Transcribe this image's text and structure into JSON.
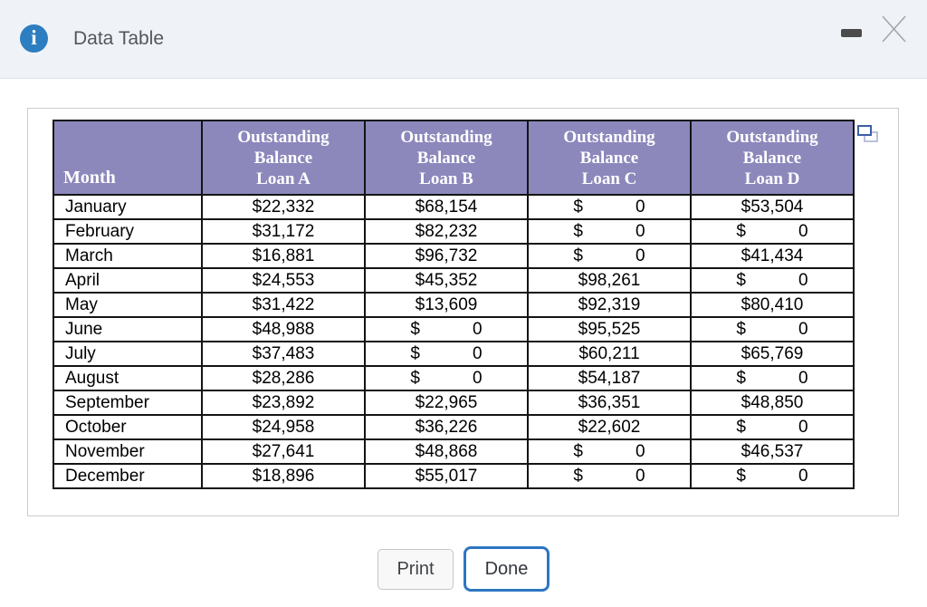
{
  "window": {
    "title": "Data Table",
    "info_glyph": "i"
  },
  "icons": {
    "info": "info-icon",
    "minimize": "minimize-icon",
    "close": "close-icon",
    "popout": "pop-out-icon"
  },
  "colors": {
    "titlebar_bg": "#eff3f7",
    "info_blue": "#2d7ec0",
    "header_purple": "#8c88bc",
    "table_border": "#141414",
    "accent_blue": "#2e75c2",
    "panel_border": "#c9cdd2"
  },
  "table": {
    "header": {
      "month": "Month",
      "loans": [
        "Outstanding\nBalance\nLoan A",
        "Outstanding\nBalance\nLoan B",
        "Outstanding\nBalance\nLoan C",
        "Outstanding\nBalance\nLoan D"
      ]
    },
    "rows": [
      {
        "month": "January",
        "a": "$22,332",
        "b": "$68,154",
        "c": "$           0",
        "d": "$53,504"
      },
      {
        "month": "February",
        "a": "$31,172",
        "b": "$82,232",
        "c": "$           0",
        "d": "$           0"
      },
      {
        "month": "March",
        "a": "$16,881",
        "b": "$96,732",
        "c": "$           0",
        "d": "$41,434"
      },
      {
        "month": "April",
        "a": "$24,553",
        "b": "$45,352",
        "c": "$98,261",
        "d": "$           0"
      },
      {
        "month": "May",
        "a": "$31,422",
        "b": "$13,609",
        "c": "$92,319",
        "d": "$80,410"
      },
      {
        "month": "June",
        "a": "$48,988",
        "b": "$           0",
        "c": "$95,525",
        "d": "$           0"
      },
      {
        "month": "July",
        "a": "$37,483",
        "b": "$           0",
        "c": "$60,211",
        "d": "$65,769"
      },
      {
        "month": "August",
        "a": "$28,286",
        "b": "$           0",
        "c": "$54,187",
        "d": "$           0"
      },
      {
        "month": "September",
        "a": "$23,892",
        "b": "$22,965",
        "c": "$36,351",
        "d": "$48,850"
      },
      {
        "month": "October",
        "a": "$24,958",
        "b": "$36,226",
        "c": "$22,602",
        "d": "$           0"
      },
      {
        "month": "November",
        "a": "$27,641",
        "b": "$48,868",
        "c": "$           0",
        "d": "$46,537"
      },
      {
        "month": "December",
        "a": "$18,896",
        "b": "$55,017",
        "c": "$           0",
        "d": "$           0"
      }
    ]
  },
  "buttons": {
    "print": "Print",
    "done": "Done"
  }
}
